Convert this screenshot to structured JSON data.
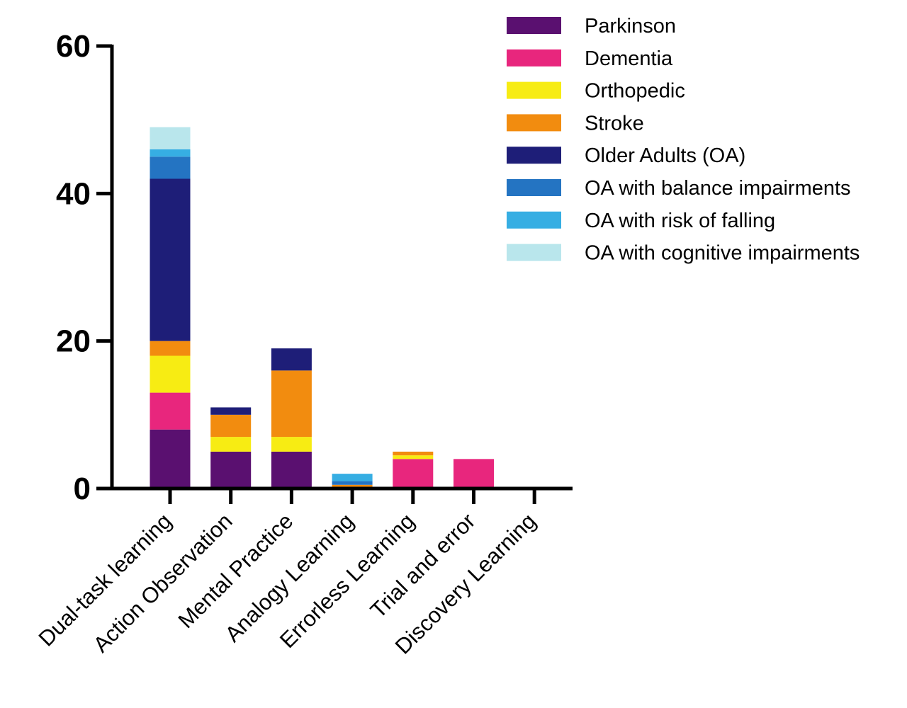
{
  "chart_data": {
    "type": "bar",
    "stacked": true,
    "categories": [
      "Dual-task learning",
      "Action Observation",
      "Mental Practice",
      "Analogy Learning",
      "Errorless Learning",
      "Trial and error",
      "Discovery Learning"
    ],
    "ylim": [
      0,
      60
    ],
    "yticks": [
      0,
      20,
      40,
      60
    ],
    "xlabel": "",
    "ylabel": "",
    "legend_position": "top-right",
    "grid": false,
    "series": [
      {
        "name": "Parkinson",
        "color": "#5a1070",
        "values": [
          8,
          5,
          5,
          0,
          0,
          0,
          0
        ]
      },
      {
        "name": "Dementia",
        "color": "#e8267d",
        "values": [
          5,
          0,
          0,
          0,
          4,
          4,
          0
        ]
      },
      {
        "name": "Orthopedic",
        "color": "#f7ec13",
        "values": [
          5,
          2,
          2,
          0,
          0.5,
          0,
          0
        ]
      },
      {
        "name": "Stroke",
        "color": "#f28c0f",
        "values": [
          2,
          3,
          9,
          0.5,
          0.5,
          0,
          0
        ]
      },
      {
        "name": "Older Adults (OA)",
        "color": "#1e1e78",
        "values": [
          22,
          1,
          3,
          0,
          0,
          0,
          0
        ]
      },
      {
        "name": "OA with balance impairments",
        "color": "#2474c2",
        "values": [
          3,
          0,
          0,
          0.5,
          0,
          0,
          0
        ]
      },
      {
        "name": "OA with risk of falling",
        "color": "#36aee3",
        "values": [
          1,
          0,
          0,
          1,
          0,
          0,
          0
        ]
      },
      {
        "name": "OA with cognitive impairments",
        "color": "#b9e6ec",
        "values": [
          3,
          0,
          0,
          0,
          0,
          0,
          0
        ]
      }
    ]
  }
}
